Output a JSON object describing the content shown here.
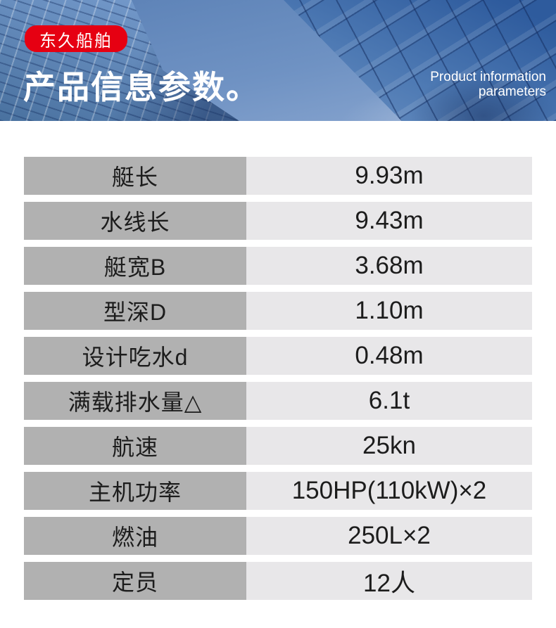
{
  "header": {
    "brand_badge": "东久船舶",
    "title": "产品信息参数。",
    "subtitle_en_line1": "Product information",
    "subtitle_en_line2": "parameters",
    "colors": {
      "badge_red": "#e60012",
      "sky_blue": "#6f92c3",
      "building_blue": "#3f6aa3",
      "text_white": "#ffffff"
    }
  },
  "table": {
    "colors": {
      "label_cell_bg": "#b1b1b1",
      "value_cell_bg": "#e8e7e9",
      "text": "#1c1c1c"
    },
    "rows": [
      {
        "label": "艇长",
        "value": "9.93m"
      },
      {
        "label": "水线长",
        "value": "9.43m"
      },
      {
        "label": "艇宽B",
        "value": "3.68m"
      },
      {
        "label": "型深D",
        "value": "1.10m"
      },
      {
        "label": "设计吃水d",
        "value": "0.48m"
      },
      {
        "label": "满载排水量△",
        "value": "6.1t"
      },
      {
        "label": "航速",
        "value": "25kn"
      },
      {
        "label": "主机功率",
        "value": "150HP(110kW)×2"
      },
      {
        "label": "燃油",
        "value": "250L×2"
      },
      {
        "label": "定员",
        "value": "12人"
      }
    ]
  }
}
